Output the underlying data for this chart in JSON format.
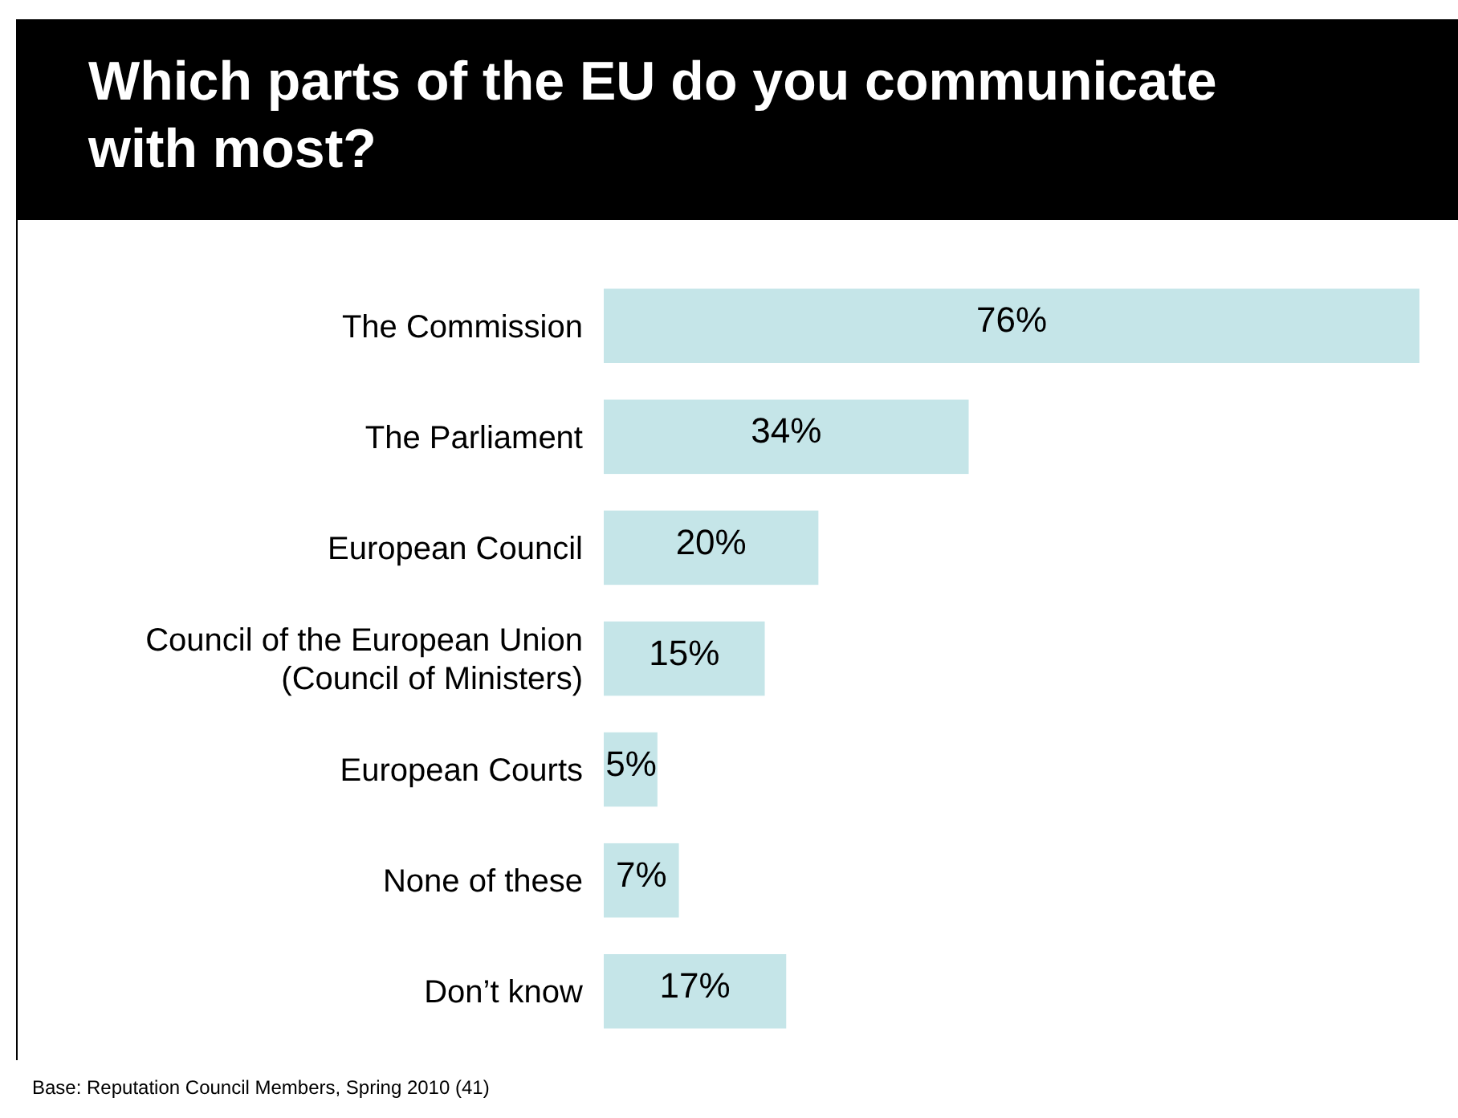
{
  "chart_data": {
    "type": "bar",
    "orientation": "horizontal",
    "title": "Which parts of the EU do you communicate with most?",
    "categories": [
      "The Commission",
      "The Parliament",
      "European Council",
      "Council of the European Union\n(Council of Ministers)",
      "European Courts",
      "None of these",
      "Don’t know"
    ],
    "values": [
      76,
      34,
      20,
      15,
      5,
      7,
      17
    ],
    "value_labels": [
      "76%",
      "34%",
      "20%",
      "15%",
      "5%",
      "7%",
      "17%"
    ],
    "color": "#c5e5e8",
    "tick_labels": "x",
    "annotations": [
      "Base: Reputation Council Members, Spring 2010 (41)"
    ]
  }
}
